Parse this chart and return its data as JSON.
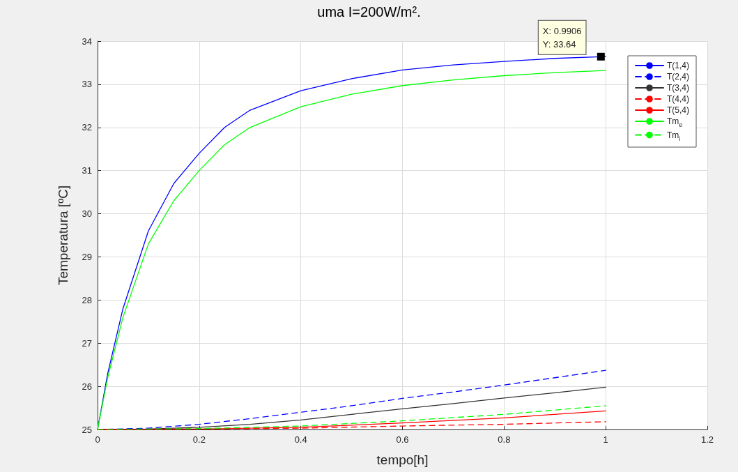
{
  "chart_data": {
    "type": "line",
    "title": "uma I=200W/m².",
    "xlabel": "tempo[h]",
    "ylabel": "Temperatura [ºC]",
    "xlim": [
      0,
      1.2
    ],
    "xticks": [
      0,
      0.2,
      0.4,
      0.6,
      0.8,
      1,
      1.2
    ],
    "ylim": [
      25,
      34
    ],
    "yticks": [
      25,
      26,
      27,
      28,
      29,
      30,
      31,
      32,
      33,
      34
    ],
    "grid": true,
    "legend": "top right",
    "marker": "none",
    "annotations": [
      {
        "text": "X: 0.9906\nY: 33.64",
        "x": 0.9906,
        "y": 33.64
      }
    ],
    "series": [
      {
        "name": "T(1,4)",
        "color": "#0000ff",
        "line_style": "solid",
        "x": [
          0,
          0.02,
          0.05,
          0.1,
          0.15,
          0.2,
          0.25,
          0.3,
          0.4,
          0.5,
          0.6,
          0.7,
          0.8,
          0.9,
          0.9906,
          1.0
        ],
        "values": [
          25,
          26.3,
          27.8,
          29.6,
          30.7,
          31.4,
          32.0,
          32.4,
          32.85,
          33.13,
          33.33,
          33.45,
          33.53,
          33.6,
          33.64,
          33.65
        ]
      },
      {
        "name": "T(2,4)",
        "color": "#0000ff",
        "line_style": "dashed",
        "x": [
          0,
          0.1,
          0.2,
          0.3,
          0.4,
          0.5,
          0.6,
          0.7,
          0.8,
          0.9,
          1.0
        ],
        "values": [
          25,
          25.03,
          25.12,
          25.25,
          25.4,
          25.55,
          25.72,
          25.87,
          26.03,
          26.2,
          26.37
        ]
      },
      {
        "name": "T(3,4)",
        "color": "#333333",
        "line_style": "solid",
        "x": [
          0,
          0.1,
          0.2,
          0.3,
          0.4,
          0.5,
          0.6,
          0.7,
          0.8,
          0.9,
          1.0
        ],
        "values": [
          25,
          25.01,
          25.05,
          25.12,
          25.22,
          25.35,
          25.48,
          25.6,
          25.73,
          25.85,
          25.98
        ]
      },
      {
        "name": "T(4,4)",
        "color": "#ff0000",
        "line_style": "dashed",
        "x": [
          0,
          0.2,
          0.4,
          0.6,
          0.8,
          1.0
        ],
        "values": [
          25,
          25.01,
          25.03,
          25.08,
          25.12,
          25.18
        ]
      },
      {
        "name": "T(5,4)",
        "color": "#ff0000",
        "line_style": "solid",
        "x": [
          0,
          0.2,
          0.4,
          0.6,
          0.8,
          1.0
        ],
        "values": [
          25,
          25.01,
          25.05,
          25.15,
          25.27,
          25.43
        ]
      },
      {
        "name": "Tm$_{e}$",
        "color": "#00ff00",
        "line_style": "solid",
        "x": [
          0,
          0.02,
          0.05,
          0.1,
          0.15,
          0.2,
          0.25,
          0.3,
          0.4,
          0.5,
          0.6,
          0.7,
          0.8,
          0.9,
          1.0
        ],
        "values": [
          25,
          26.2,
          27.6,
          29.3,
          30.3,
          31.0,
          31.6,
          32.0,
          32.48,
          32.77,
          32.97,
          33.1,
          33.2,
          33.27,
          33.32
        ]
      },
      {
        "name": "Tm$_{i}$",
        "color": "#00ff00",
        "line_style": "dashed",
        "x": [
          0,
          0.2,
          0.4,
          0.6,
          0.8,
          1.0
        ],
        "values": [
          25,
          25.02,
          25.08,
          25.2,
          25.35,
          25.55
        ]
      }
    ]
  }
}
